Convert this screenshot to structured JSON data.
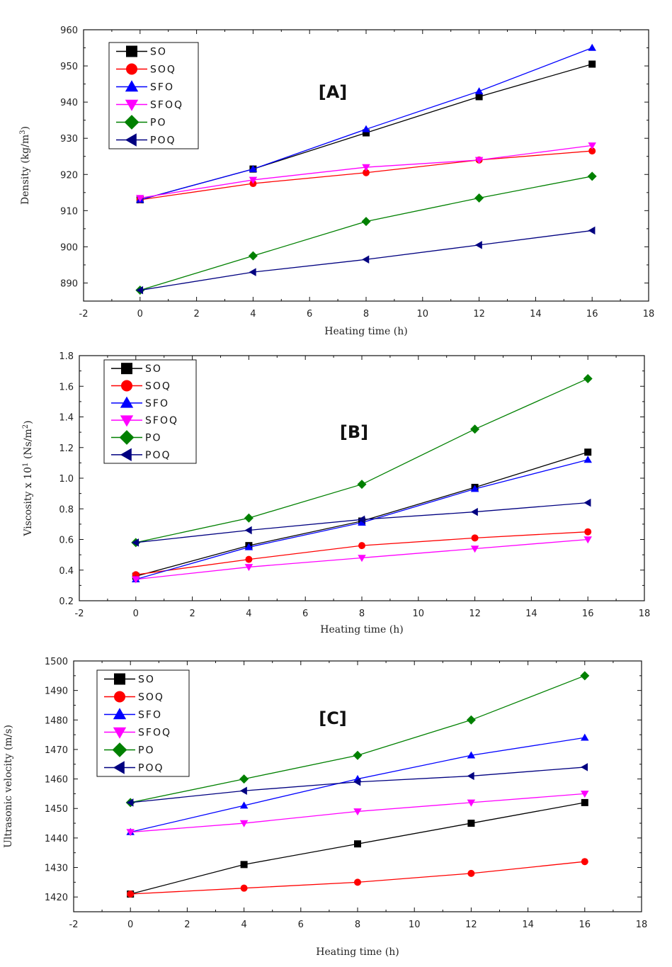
{
  "chart_data": [
    {
      "type": "line",
      "panel_label": "[A]",
      "xlabel": "Heating time (h)",
      "ylabel": "Density (kg/m",
      "ylabel_sup": "3",
      "ylabel_end": ")",
      "x": [
        0,
        4,
        8,
        12,
        16
      ],
      "xlim": [
        -2,
        18
      ],
      "xticks": [
        -2,
        0,
        2,
        4,
        6,
        8,
        10,
        12,
        14,
        16,
        18
      ],
      "ylim": [
        885,
        960
      ],
      "yticks": [
        890,
        900,
        910,
        920,
        930,
        940,
        950,
        960
      ],
      "legend_position": "top-left",
      "series": [
        {
          "name": "SO",
          "color": "#000000",
          "marker": "square",
          "values": [
            913,
            921.5,
            931.5,
            941.5,
            950.5
          ]
        },
        {
          "name": "SOQ",
          "color": "#ff0000",
          "marker": "circle",
          "values": [
            913,
            917.5,
            920.5,
            924,
            926.5
          ]
        },
        {
          "name": "SFO",
          "color": "#0000ff",
          "marker": "triangle-up",
          "values": [
            913,
            921.5,
            932.5,
            943,
            955
          ]
        },
        {
          "name": "SFOQ",
          "color": "#ff00ff",
          "marker": "triangle-down",
          "values": [
            913.5,
            918.5,
            922,
            924,
            928
          ]
        },
        {
          "name": "PO",
          "color": "#008000",
          "marker": "diamond",
          "values": [
            888,
            897.5,
            907,
            913.5,
            919.5
          ]
        },
        {
          "name": "POQ",
          "color": "#000080",
          "marker": "triangle-left",
          "values": [
            888,
            893,
            896.5,
            900.5,
            904.5
          ]
        }
      ]
    },
    {
      "type": "line",
      "panel_label": "[B]",
      "xlabel": "Heating time (h)",
      "ylabel": "Viscosity x 10",
      "ylabel_sup": "1",
      "ylabel_end": " (Ns/m",
      "ylabel_sup2": "2",
      "ylabel_end2": ")",
      "x": [
        0,
        4,
        8,
        12,
        16
      ],
      "xlim": [
        -2,
        18
      ],
      "xticks": [
        -2,
        0,
        2,
        4,
        6,
        8,
        10,
        12,
        14,
        16,
        18
      ],
      "ylim": [
        0.2,
        1.8
      ],
      "yticks": [
        0.2,
        0.4,
        0.6,
        0.8,
        1.0,
        1.2,
        1.4,
        1.6,
        1.8
      ],
      "ytick_labels": [
        "0.2",
        "0.4",
        "0.6",
        "0.8",
        "1.0",
        "1.2",
        "1.4",
        "1.6",
        "1.8"
      ],
      "legend_position": "top-left",
      "series": [
        {
          "name": "SO",
          "color": "#000000",
          "marker": "square",
          "values": [
            0.36,
            0.56,
            0.72,
            0.94,
            1.17
          ]
        },
        {
          "name": "SOQ",
          "color": "#ff0000",
          "marker": "circle",
          "values": [
            0.37,
            0.47,
            0.56,
            0.61,
            0.65
          ]
        },
        {
          "name": "SFO",
          "color": "#0000ff",
          "marker": "triangle-up",
          "values": [
            0.34,
            0.55,
            0.71,
            0.93,
            1.12
          ]
        },
        {
          "name": "SFOQ",
          "color": "#ff00ff",
          "marker": "triangle-down",
          "values": [
            0.34,
            0.42,
            0.48,
            0.54,
            0.6
          ]
        },
        {
          "name": "PO",
          "color": "#008000",
          "marker": "diamond",
          "values": [
            0.58,
            0.74,
            0.96,
            1.32,
            1.65
          ]
        },
        {
          "name": "POQ",
          "color": "#000080",
          "marker": "triangle-left",
          "values": [
            0.58,
            0.66,
            0.73,
            0.78,
            0.84
          ]
        }
      ]
    },
    {
      "type": "line",
      "panel_label": "[C]",
      "xlabel": "Heating time (h)",
      "ylabel": "Ultrasonic velocity (m/s)",
      "x": [
        0,
        4,
        8,
        12,
        16
      ],
      "xlim": [
        -2,
        18
      ],
      "xticks": [
        -2,
        0,
        2,
        4,
        6,
        8,
        10,
        12,
        14,
        16,
        18
      ],
      "ylim": [
        1415,
        1500
      ],
      "yticks": [
        1420,
        1430,
        1440,
        1450,
        1460,
        1470,
        1480,
        1490,
        1500
      ],
      "legend_position": "top-left",
      "series": [
        {
          "name": "SO",
          "color": "#000000",
          "marker": "square",
          "values": [
            1421,
            1431,
            1438,
            1445,
            1452
          ]
        },
        {
          "name": "SOQ",
          "color": "#ff0000",
          "marker": "circle",
          "values": [
            1421,
            1423,
            1425,
            1428,
            1432
          ]
        },
        {
          "name": "SFO",
          "color": "#0000ff",
          "marker": "triangle-up",
          "values": [
            1442,
            1451,
            1460,
            1468,
            1474
          ]
        },
        {
          "name": "SFOQ",
          "color": "#ff00ff",
          "marker": "triangle-down",
          "values": [
            1442,
            1445,
            1449,
            1452,
            1455
          ]
        },
        {
          "name": "PO",
          "color": "#008000",
          "marker": "diamond",
          "values": [
            1452,
            1460,
            1468,
            1480,
            1495
          ]
        },
        {
          "name": "POQ",
          "color": "#000080",
          "marker": "triangle-left",
          "values": [
            1452,
            1456,
            1459,
            1461,
            1464
          ]
        }
      ]
    }
  ]
}
